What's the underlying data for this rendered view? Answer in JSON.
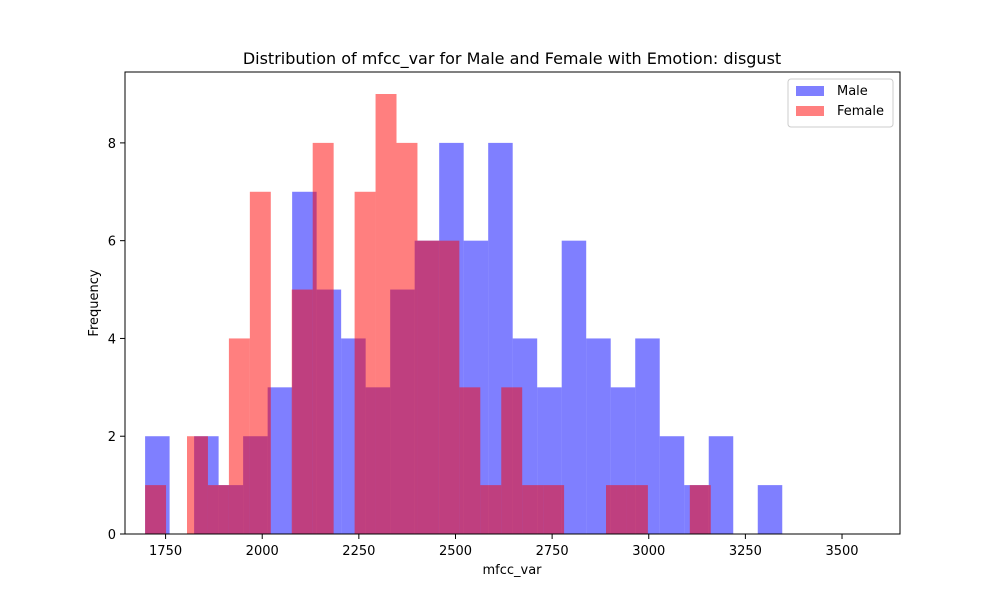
{
  "chart_data": {
    "type": "histogram",
    "title": "Distribution of mfcc_var for Male and Female with Emotion: disgust",
    "xlabel": "mfcc_var",
    "ylabel": "Frequency",
    "xlim": [
      1645,
      3650
    ],
    "ylim": [
      0,
      9.45
    ],
    "xticks": [
      1750,
      2000,
      2250,
      2500,
      2750,
      3000,
      3250,
      3500
    ],
    "yticks": [
      0,
      2,
      4,
      6,
      8
    ],
    "legend_position": "top-right",
    "series": [
      {
        "name": "Male",
        "color": "#0000ff",
        "opacity": 0.5,
        "bin_start": 1697,
        "bin_width": 63.4,
        "counts": [
          2,
          0,
          2,
          1,
          2,
          3,
          7,
          5,
          4,
          3,
          5,
          6,
          8,
          6,
          8,
          4,
          3,
          6,
          4,
          3,
          4,
          2,
          1,
          2,
          0,
          1
        ]
      },
      {
        "name": "Female",
        "color": "#ff0000",
        "opacity": 0.5,
        "bin_start": 1697,
        "bin_width": 54.2,
        "counts": [
          1,
          0,
          2,
          1,
          4,
          7,
          0,
          5,
          8,
          0,
          7,
          9,
          8,
          6,
          6,
          3,
          1,
          3,
          1,
          1,
          0,
          0,
          1,
          1,
          0,
          0,
          1
        ]
      }
    ]
  }
}
